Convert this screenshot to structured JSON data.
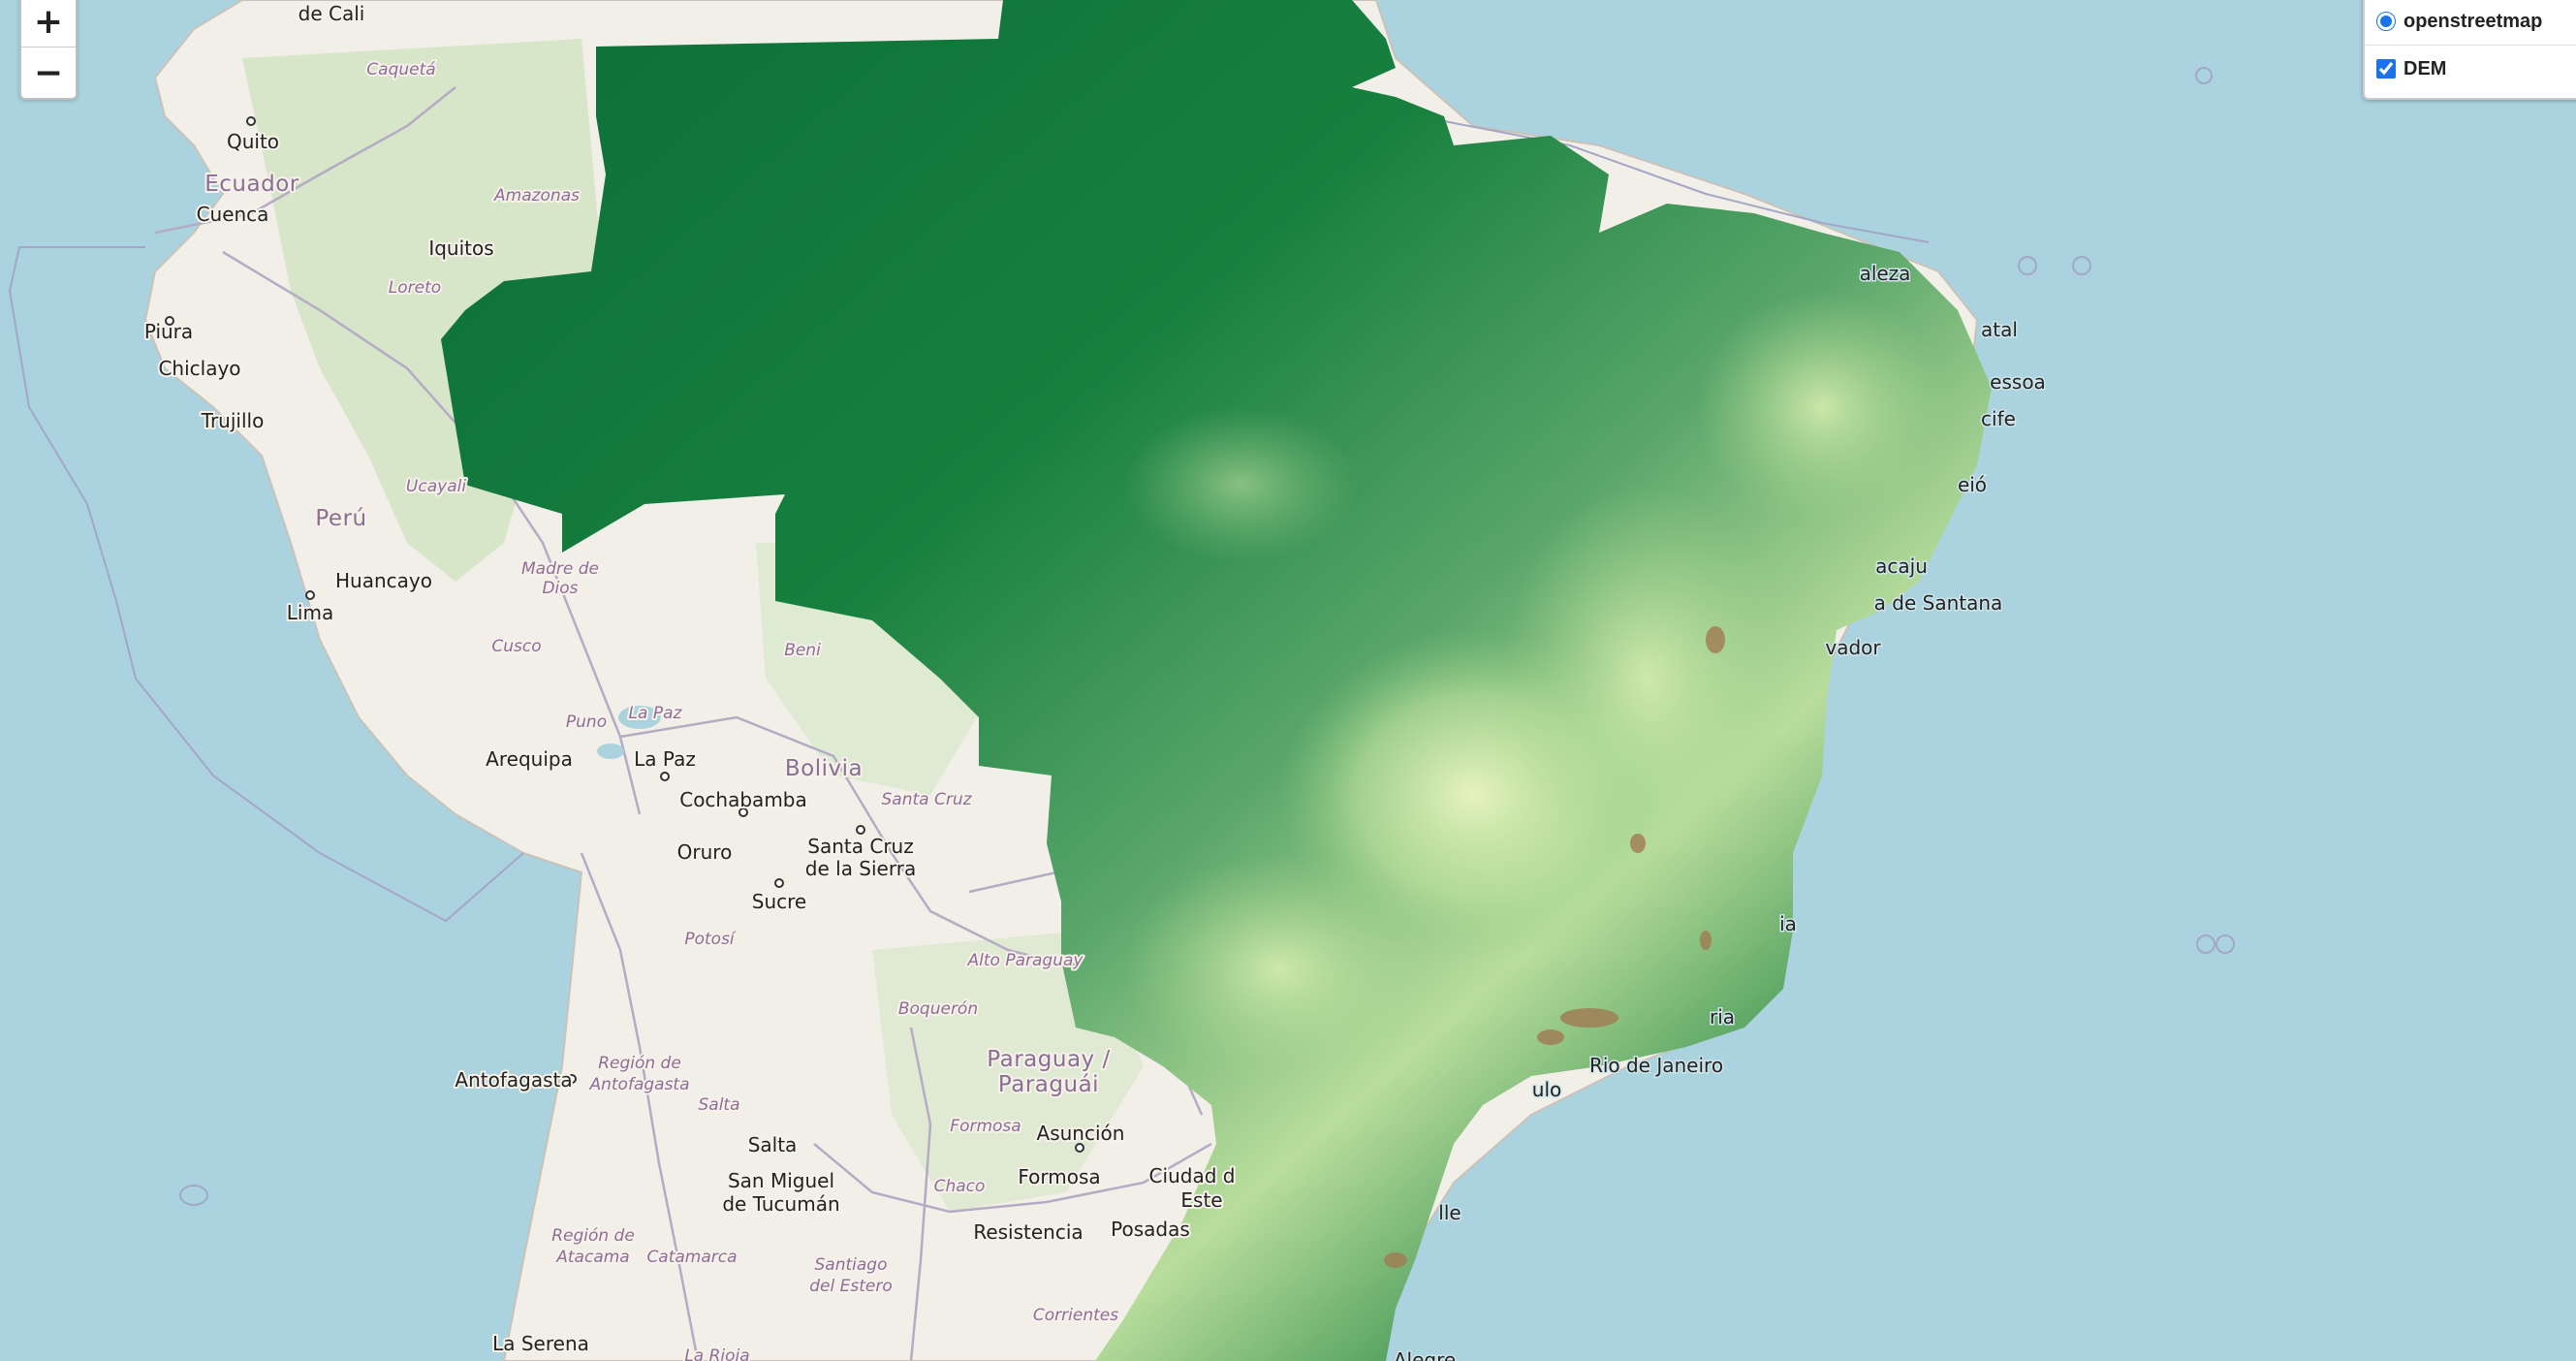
{
  "zoom": {
    "in_label": "+",
    "out_label": "−"
  },
  "layers": {
    "base": [
      {
        "label": "openstreetmap",
        "selected": true
      }
    ],
    "overlays": [
      {
        "label": "DEM",
        "checked": true
      }
    ]
  },
  "map_labels": {
    "countries": [
      "Ecuador",
      "Perú",
      "Bolivia",
      "Paraguay /",
      "Paraguái"
    ],
    "regions": [
      "Caquetá",
      "Amazonas",
      "Loreto",
      "Ucayali",
      "Madre de",
      "Dios",
      "Cusco",
      "Puno",
      "La Paz",
      "Beni",
      "Santa Cruz",
      "Potosí",
      "Alto Paraguay",
      "Boquerón",
      "Región de",
      "Antofagasta",
      "Salta",
      "Formosa",
      "Chaco",
      "Región de",
      "Atacama",
      "Catamarca",
      "Santiago",
      "del Estero",
      "Corrientes",
      "La Rioja"
    ],
    "cities": [
      "de Cali",
      "Quito",
      "Cuenca",
      "Iquitos",
      "Piura",
      "Chiclayo",
      "Trujillo",
      "Huancayo",
      "Lima",
      "Arequipa",
      "La Paz",
      "Cochabamba",
      "Oruro",
      "Santa Cruz",
      "de la Sierra",
      "Sucre",
      "Antofagasta",
      "Salta",
      "San Miguel",
      "de Tucumán",
      "Asunción",
      "Formosa",
      "Ciudad d",
      "Este",
      "Resistencia",
      "Posadas",
      "La Serena",
      "Rio de Janeiro",
      "ulo",
      "lle",
      "aleza",
      "atal",
      "essoa",
      "cife",
      "eió",
      "acaju",
      "a de Santana",
      "vador",
      "ia",
      "ria",
      "Alegre"
    ]
  },
  "colors": {
    "sea": "#aad3df",
    "land": "#f2efe9",
    "border": "#a9a3b8",
    "dem_low": "#0a6e36",
    "dem_high": "#eaf7c4"
  }
}
